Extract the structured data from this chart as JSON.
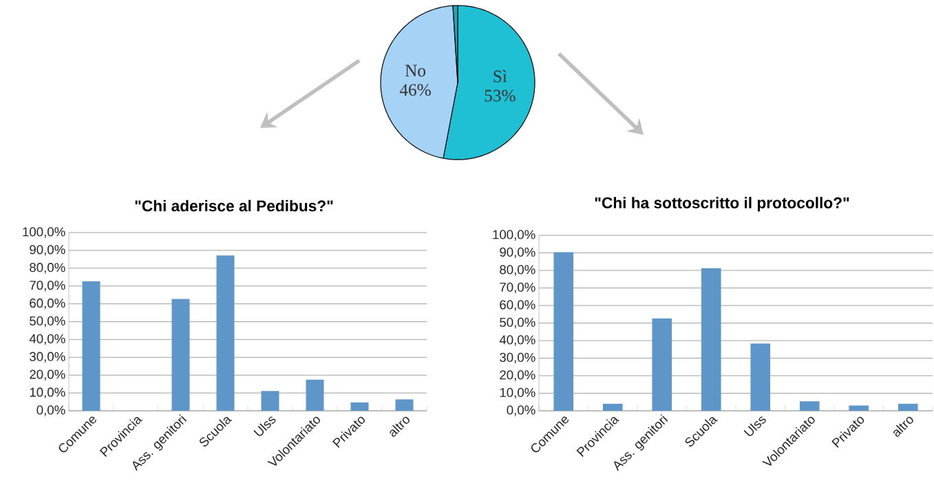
{
  "chart_data": [
    {
      "type": "pie",
      "categories": [
        "Sì",
        "No",
        null
      ],
      "values": [
        53,
        46,
        1
      ],
      "colors": [
        "#1fbfd4",
        "#a6d2f6",
        "#14a8b8"
      ],
      "value_labels": [
        "53%",
        "46%",
        null
      ]
    },
    {
      "type": "bar",
      "title": "\"Chi aderisce al Pedibus?\"",
      "categories": [
        "Comune",
        "Provincia",
        "Ass. genitori",
        "Scuola",
        "Ulss",
        "Volontariato",
        "Privato",
        "altro"
      ],
      "values": [
        72.7,
        0,
        62.7,
        87.2,
        11.1,
        17.5,
        4.7,
        6.4
      ],
      "color": "#5f96ca",
      "ylim": [
        0,
        100
      ],
      "grid": "y",
      "yticks": [
        {
          "value": 0,
          "label": "0,0%"
        },
        {
          "value": 10,
          "label": "10,0%"
        },
        {
          "value": 20,
          "label": "20,0%"
        },
        {
          "value": 30,
          "label": "30,0%"
        },
        {
          "value": 40,
          "label": "40,0%"
        },
        {
          "value": 50,
          "label": "50,0%"
        },
        {
          "value": 60,
          "label": "60,0%"
        },
        {
          "value": 70,
          "label": "70,0%"
        },
        {
          "value": 80,
          "label": "80,0%"
        },
        {
          "value": 90,
          "label": "90,0%"
        },
        {
          "value": 100,
          "label": "100,0%"
        }
      ]
    },
    {
      "type": "bar",
      "title": "\"Chi ha sottoscritto il protocollo?\"",
      "categories": [
        "Comune",
        "Provincia",
        "Ass. genitori",
        "Scuola",
        "Ulss",
        "Volontariato",
        "Privato",
        "altro"
      ],
      "values": [
        90.4,
        4.0,
        52.6,
        81.3,
        38.3,
        5.4,
        3.0,
        4.0
      ],
      "color": "#5f96ca",
      "ylim": [
        0,
        100
      ],
      "grid": "y",
      "yticks": [
        {
          "value": 0,
          "label": "0,0%"
        },
        {
          "value": 10,
          "label": "10,0%"
        },
        {
          "value": 20,
          "label": "20,0%"
        },
        {
          "value": 30,
          "label": "30,0%"
        },
        {
          "value": 40,
          "label": "40,0%"
        },
        {
          "value": 50,
          "label": "50,0%"
        },
        {
          "value": 60,
          "label": "60,0%"
        },
        {
          "value": 70,
          "label": "70,0%"
        },
        {
          "value": 80,
          "label": "80,0%"
        },
        {
          "value": 90,
          "label": "90,0%"
        },
        {
          "value": 100,
          "label": "100,0%"
        }
      ]
    }
  ]
}
